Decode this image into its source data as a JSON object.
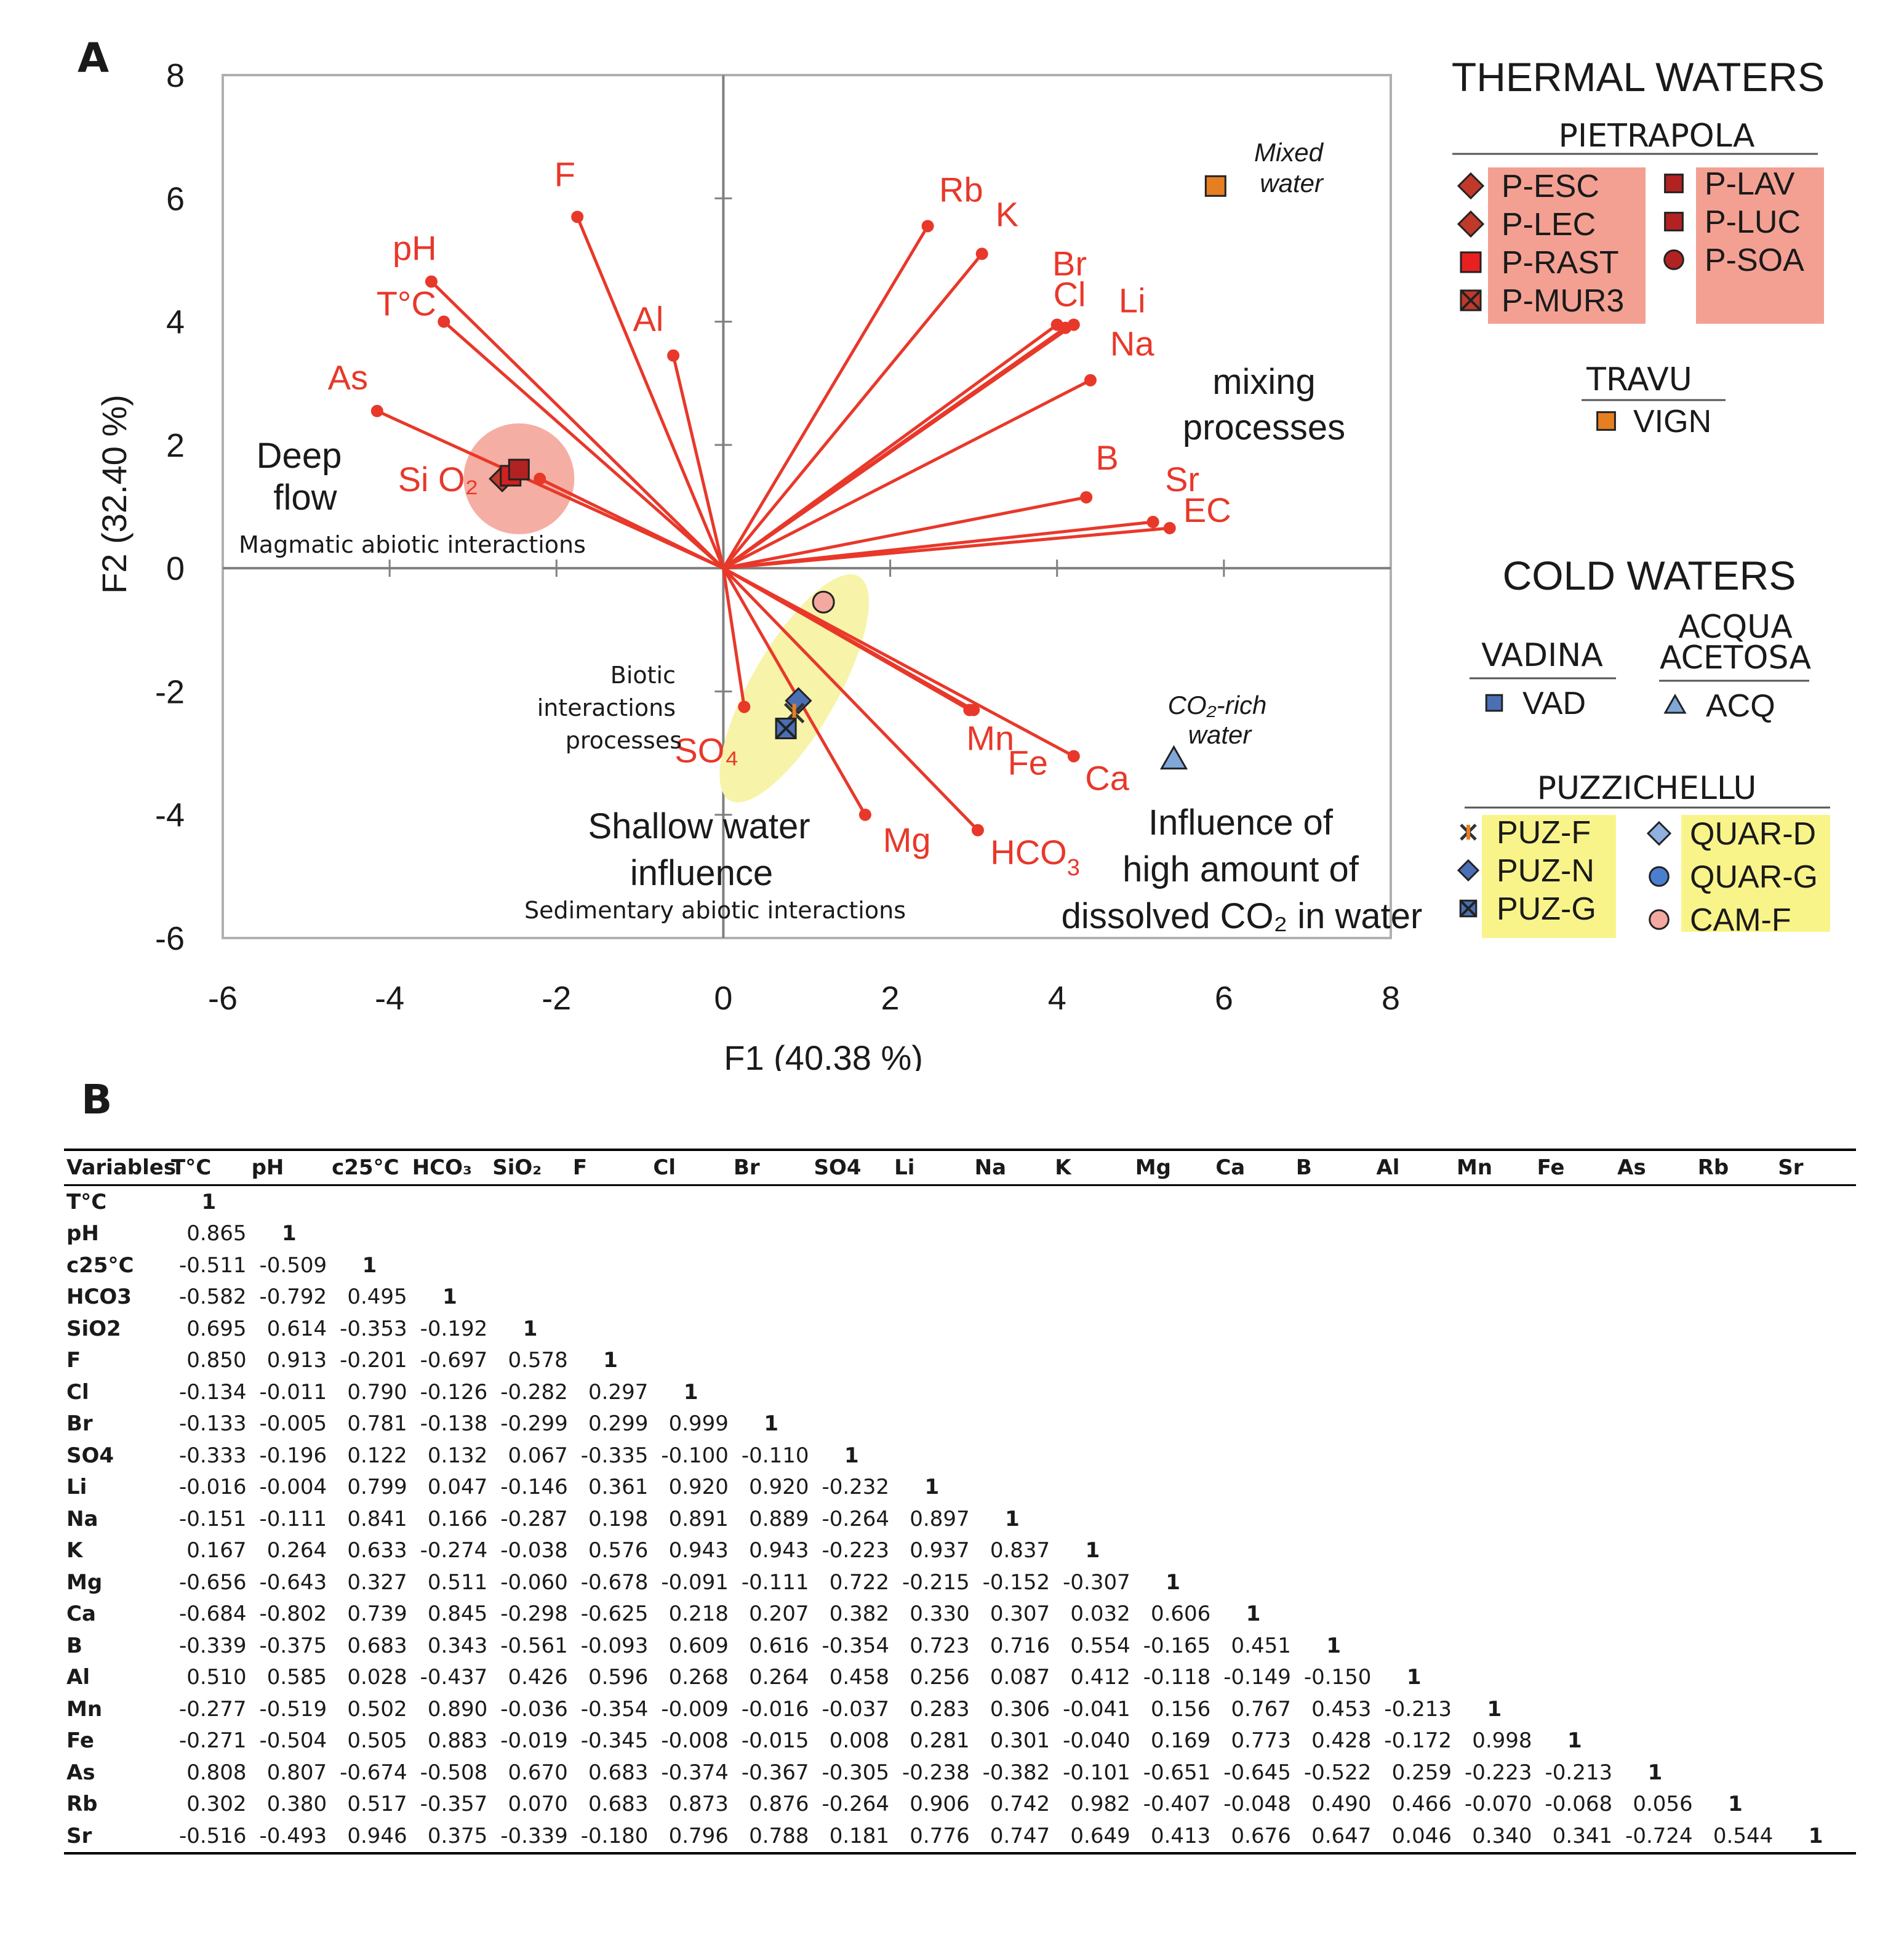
{
  "panel_a_label": "A",
  "panel_b_label": "B",
  "chart_data": {
    "type": "scatter",
    "subtype": "pca-biplot",
    "xlabel": "F1 (40.38 %)",
    "ylabel": "F2 (32.40 %)",
    "xlim": [
      -6,
      8
    ],
    "ylim": [
      -6,
      8
    ],
    "xticks": [
      "-6",
      "-4",
      "-2",
      "0",
      "2",
      "4",
      "6",
      "8"
    ],
    "yticks": [
      "8",
      "6",
      "4",
      "2",
      "0",
      "-2",
      "-4",
      "-6"
    ],
    "grid": false,
    "loadings": [
      {
        "name": "F",
        "x": -1.75,
        "y": 5.7,
        "label": "F"
      },
      {
        "name": "pH",
        "x": -3.5,
        "y": 4.65,
        "label": "pH"
      },
      {
        "name": "TC",
        "x": -3.35,
        "y": 4.0,
        "label": "T°C"
      },
      {
        "name": "Al",
        "x": -0.6,
        "y": 3.45,
        "label": "Al"
      },
      {
        "name": "As",
        "x": -4.15,
        "y": 2.55,
        "label": "As"
      },
      {
        "name": "SiO2",
        "x": -2.2,
        "y": 1.45,
        "label": "Si O₂"
      },
      {
        "name": "Rb",
        "x": 2.45,
        "y": 5.55,
        "label": "Rb"
      },
      {
        "name": "K",
        "x": 3.1,
        "y": 5.1,
        "label": "K"
      },
      {
        "name": "Br",
        "x": 4.0,
        "y": 3.95,
        "label": "Br"
      },
      {
        "name": "Cl",
        "x": 4.1,
        "y": 3.9,
        "label": "Cl"
      },
      {
        "name": "Li",
        "x": 4.2,
        "y": 3.95,
        "label": "Li"
      },
      {
        "name": "Na",
        "x": 4.4,
        "y": 3.05,
        "label": "Na"
      },
      {
        "name": "B",
        "x": 4.35,
        "y": 1.15,
        "label": "B"
      },
      {
        "name": "Sr",
        "x": 5.15,
        "y": 0.75,
        "label": "Sr"
      },
      {
        "name": "EC",
        "x": 5.35,
        "y": 0.65,
        "label": "EC"
      },
      {
        "name": "SO4",
        "x": 0.25,
        "y": -2.25,
        "label": "SO₄"
      },
      {
        "name": "Mn",
        "x": 2.95,
        "y": -2.3,
        "label": "Mn"
      },
      {
        "name": "Fe",
        "x": 3.0,
        "y": -2.3,
        "label": "Fe"
      },
      {
        "name": "Ca",
        "x": 4.2,
        "y": -3.05,
        "label": "Ca"
      },
      {
        "name": "Mg",
        "x": 1.7,
        "y": -4.0,
        "label": "Mg"
      },
      {
        "name": "HCO3",
        "x": 3.05,
        "y": -4.25,
        "label": "HCO"
      }
    ],
    "hco3_subscript": "3",
    "samples": [
      {
        "id": "P-ESC",
        "marker": "diamond",
        "x": -2.65,
        "y": 1.45,
        "color": "#c0392b"
      },
      {
        "id": "P-LEC",
        "marker": "diamond",
        "x": -2.5,
        "y": 1.55,
        "color": "#c0392b"
      },
      {
        "id": "P-RAST",
        "marker": "square",
        "x": -2.55,
        "y": 1.5,
        "color": "#d02020"
      },
      {
        "id": "P-LAV",
        "marker": "square",
        "x": -2.45,
        "y": 1.6,
        "color": "#b22222"
      },
      {
        "id": "VIGN",
        "marker": "square",
        "x": 5.9,
        "y": 6.2,
        "color": "#e67e22"
      },
      {
        "id": "CAM-F",
        "marker": "circle",
        "x": 1.2,
        "y": -0.55,
        "color": "#f4a9a0"
      },
      {
        "id": "QUAR-D",
        "marker": "diamond",
        "x": 0.9,
        "y": -2.15,
        "color": "#4a6fb5"
      },
      {
        "id": "PUZ-F",
        "marker": "asterisk",
        "x": 0.85,
        "y": -2.35,
        "color": "#e67e22"
      },
      {
        "id": "PUZ-G",
        "marker": "xsquare",
        "x": 0.75,
        "y": -2.6,
        "color": "#4a6fb5"
      },
      {
        "id": "ACQ",
        "marker": "triangle",
        "x": 5.4,
        "y": -3.1,
        "color": "#7fa8d8"
      }
    ],
    "annotations": {
      "deep_flow": [
        "Deep",
        "flow"
      ],
      "magmatic": "Magmatic abiotic interactions",
      "mixing": [
        "mixing",
        "processes"
      ],
      "mixed_water": [
        "Mixed",
        "water"
      ],
      "biotic": [
        "Biotic",
        "interactions",
        "processes"
      ],
      "shallow": [
        "Shallow water",
        "influence"
      ],
      "sedimentary": "Sedimentary abiotic interactions",
      "co2_influence": [
        "Influence of",
        "high amount of",
        "dissolved CO₂ in water"
      ],
      "co2_rich": [
        "CO₂-rich",
        "water"
      ]
    },
    "legend": {
      "thermal_title": "THERMAL WATERS",
      "pietrapola_title": "PIETRAPOLA",
      "pietrapola_left": [
        {
          "label": "P-ESC",
          "marker": "diamond",
          "color": "#c0392b"
        },
        {
          "label": "P-LEC",
          "marker": "diamond",
          "color": "#c0392b"
        },
        {
          "label": "P-RAST",
          "marker": "square",
          "color": "#e82020"
        },
        {
          "label": "P-MUR3",
          "marker": "xsquare",
          "color": "#c0392b"
        }
      ],
      "pietrapola_right": [
        {
          "label": "P-LAV",
          "marker": "square",
          "color": "#b22222"
        },
        {
          "label": "P-LUC",
          "marker": "square",
          "color": "#b22222"
        },
        {
          "label": "P-SOA",
          "marker": "circle",
          "color": "#b22222"
        }
      ],
      "travu_title": "TRAVU",
      "travu": [
        {
          "label": "VIGN",
          "marker": "square",
          "color": "#e67e22"
        }
      ],
      "cold_title": "COLD WATERS",
      "vadina_title": "VADINA",
      "vadina": [
        {
          "label": "VAD",
          "marker": "square",
          "color": "#4a6fb5"
        }
      ],
      "acqua_title": [
        "ACQUA",
        "ACETOSA"
      ],
      "acqua": [
        {
          "label": "ACQ",
          "marker": "triangle",
          "color": "#7fa8d8"
        }
      ],
      "puzz_title": "PUZZICHELLU",
      "puzz_left": [
        {
          "label": "PUZ-F",
          "marker": "asterisk",
          "color": "#e67e22"
        },
        {
          "label": "PUZ-N",
          "marker": "diamond",
          "color": "#4a6fb5"
        },
        {
          "label": "PUZ-G",
          "marker": "xsquare",
          "color": "#4a6fb5"
        }
      ],
      "puzz_right": [
        {
          "label": "QUAR-D",
          "marker": "diamond",
          "color": "#8fb0e0"
        },
        {
          "label": "QUAR-G",
          "marker": "circle",
          "color": "#4a7fd0"
        },
        {
          "label": "CAM-F",
          "marker": "circle",
          "color": "#f4a9a0"
        }
      ]
    }
  },
  "colors": {
    "vector": "#e8382a",
    "label": "#e8382a",
    "deep_ellipse": "#f3a093",
    "shallow_ellipse": "#f7f3a8",
    "thermal_box": "#f3a093",
    "puzz_box": "#f9f48a",
    "axis": "#808080",
    "frame": "#b0b0b0"
  },
  "table": {
    "headers": [
      "Variables",
      "T°C",
      "pH",
      "c25°C",
      "HCO₃",
      "SiO₂",
      "F",
      "Cl",
      "Br",
      "SO4",
      "Li",
      "Na",
      "K",
      "Mg",
      "Ca",
      "B",
      "Al",
      "Mn",
      "Fe",
      "As",
      "Rb",
      "Sr"
    ],
    "rows": [
      {
        "label": "T°C",
        "values": [
          "1"
        ]
      },
      {
        "label": "pH",
        "values": [
          "0.865",
          "1"
        ]
      },
      {
        "label": "c25°C",
        "values": [
          "-0.511",
          "-0.509",
          "1"
        ]
      },
      {
        "label": "HCO3",
        "values": [
          "-0.582",
          "-0.792",
          "0.495",
          "1"
        ]
      },
      {
        "label": "SiO2",
        "values": [
          "0.695",
          "0.614",
          "-0.353",
          "-0.192",
          "1"
        ]
      },
      {
        "label": "F",
        "values": [
          "0.850",
          "0.913",
          "-0.201",
          "-0.697",
          "0.578",
          "1"
        ]
      },
      {
        "label": "Cl",
        "values": [
          "-0.134",
          "-0.011",
          "0.790",
          "-0.126",
          "-0.282",
          "0.297",
          "1"
        ]
      },
      {
        "label": "Br",
        "values": [
          "-0.133",
          "-0.005",
          "0.781",
          "-0.138",
          "-0.299",
          "0.299",
          "0.999",
          "1"
        ]
      },
      {
        "label": "SO4",
        "values": [
          "-0.333",
          "-0.196",
          "0.122",
          "0.132",
          "0.067",
          "-0.335",
          "-0.100",
          "-0.110",
          "1"
        ]
      },
      {
        "label": "Li",
        "values": [
          "-0.016",
          "-0.004",
          "0.799",
          "0.047",
          "-0.146",
          "0.361",
          "0.920",
          "0.920",
          "-0.232",
          "1"
        ]
      },
      {
        "label": "Na",
        "values": [
          "-0.151",
          "-0.111",
          "0.841",
          "0.166",
          "-0.287",
          "0.198",
          "0.891",
          "0.889",
          "-0.264",
          "0.897",
          "1"
        ]
      },
      {
        "label": "K",
        "values": [
          "0.167",
          "0.264",
          "0.633",
          "-0.274",
          "-0.038",
          "0.576",
          "0.943",
          "0.943",
          "-0.223",
          "0.937",
          "0.837",
          "1"
        ]
      },
      {
        "label": "Mg",
        "values": [
          "-0.656",
          "-0.643",
          "0.327",
          "0.511",
          "-0.060",
          "-0.678",
          "-0.091",
          "-0.111",
          "0.722",
          "-0.215",
          "-0.152",
          "-0.307",
          "1"
        ]
      },
      {
        "label": "Ca",
        "values": [
          "-0.684",
          "-0.802",
          "0.739",
          "0.845",
          "-0.298",
          "-0.625",
          "0.218",
          "0.207",
          "0.382",
          "0.330",
          "0.307",
          "0.032",
          "0.606",
          "1"
        ]
      },
      {
        "label": "B",
        "values": [
          "-0.339",
          "-0.375",
          "0.683",
          "0.343",
          "-0.561",
          "-0.093",
          "0.609",
          "0.616",
          "-0.354",
          "0.723",
          "0.716",
          "0.554",
          "-0.165",
          "0.451",
          "1"
        ]
      },
      {
        "label": "Al",
        "values": [
          "0.510",
          "0.585",
          "0.028",
          "-0.437",
          "0.426",
          "0.596",
          "0.268",
          "0.264",
          "0.458",
          "0.256",
          "0.087",
          "0.412",
          "-0.118",
          "-0.149",
          "-0.150",
          "1"
        ]
      },
      {
        "label": "Mn",
        "values": [
          "-0.277",
          "-0.519",
          "0.502",
          "0.890",
          "-0.036",
          "-0.354",
          "-0.009",
          "-0.016",
          "-0.037",
          "0.283",
          "0.306",
          "-0.041",
          "0.156",
          "0.767",
          "0.453",
          "-0.213",
          "1"
        ]
      },
      {
        "label": "Fe",
        "values": [
          "-0.271",
          "-0.504",
          "0.505",
          "0.883",
          "-0.019",
          "-0.345",
          "-0.008",
          "-0.015",
          "0.008",
          "0.281",
          "0.301",
          "-0.040",
          "0.169",
          "0.773",
          "0.428",
          "-0.172",
          "0.998",
          "1"
        ]
      },
      {
        "label": "As",
        "values": [
          "0.808",
          "0.807",
          "-0.674",
          "-0.508",
          "0.670",
          "0.683",
          "-0.374",
          "-0.367",
          "-0.305",
          "-0.238",
          "-0.382",
          "-0.101",
          "-0.651",
          "-0.645",
          "-0.522",
          "0.259",
          "-0.223",
          "-0.213",
          "1"
        ]
      },
      {
        "label": "Rb",
        "values": [
          "0.302",
          "0.380",
          "0.517",
          "-0.357",
          "0.070",
          "0.683",
          "0.873",
          "0.876",
          "-0.264",
          "0.906",
          "0.742",
          "0.982",
          "-0.407",
          "-0.048",
          "0.490",
          "0.466",
          "-0.070",
          "-0.068",
          "0.056",
          "1"
        ]
      },
      {
        "label": "Sr",
        "values": [
          "-0.516",
          "-0.493",
          "0.946",
          "0.375",
          "-0.339",
          "-0.180",
          "0.796",
          "0.788",
          "0.181",
          "0.776",
          "0.747",
          "0.649",
          "0.413",
          "0.676",
          "0.647",
          "0.046",
          "0.340",
          "0.341",
          "-0.724",
          "0.544",
          "1"
        ]
      }
    ]
  }
}
